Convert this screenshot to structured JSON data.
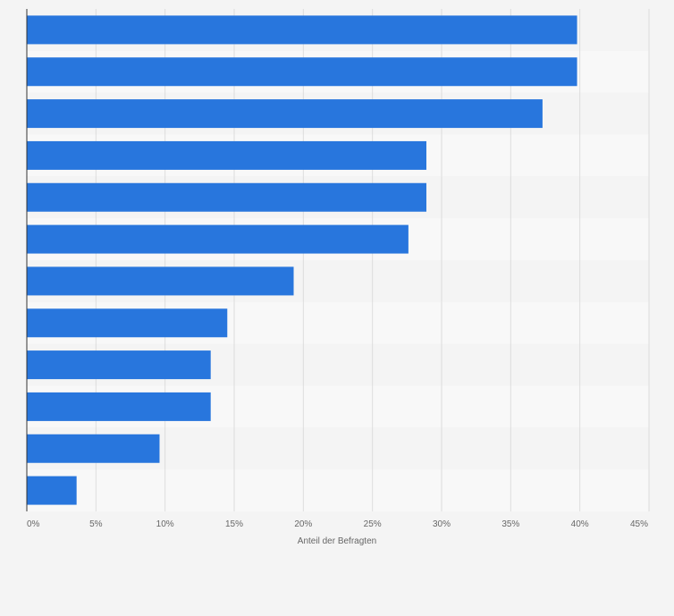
{
  "chart_data": {
    "type": "bar",
    "orientation": "horizontal",
    "title": "",
    "xlabel": "Anteil der Befragten",
    "ylabel": "",
    "xlim": [
      0,
      45
    ],
    "x_ticks": [
      0,
      5,
      10,
      15,
      20,
      25,
      30,
      35,
      40,
      45
    ],
    "x_tick_labels": [
      "0%",
      "5%",
      "10%",
      "15%",
      "20%",
      "25%",
      "30%",
      "35%",
      "40%",
      "45%"
    ],
    "categories": [
      "",
      "",
      "",
      "",
      "",
      "",
      "",
      "",
      "",
      "",
      "",
      ""
    ],
    "values": [
      39.8,
      39.8,
      37.3,
      28.9,
      28.9,
      27.6,
      19.3,
      14.5,
      13.3,
      13.3,
      9.6,
      3.6
    ],
    "unit": "%",
    "grid": true,
    "legend": "none",
    "colors": {
      "bar": "#2876dd",
      "row_band_a": "#f4f4f4",
      "row_band_b": "#f8f8f8",
      "gridline": "#dddddd",
      "axis": "#333333",
      "text": "#666666",
      "background": "#f4f4f4"
    }
  }
}
